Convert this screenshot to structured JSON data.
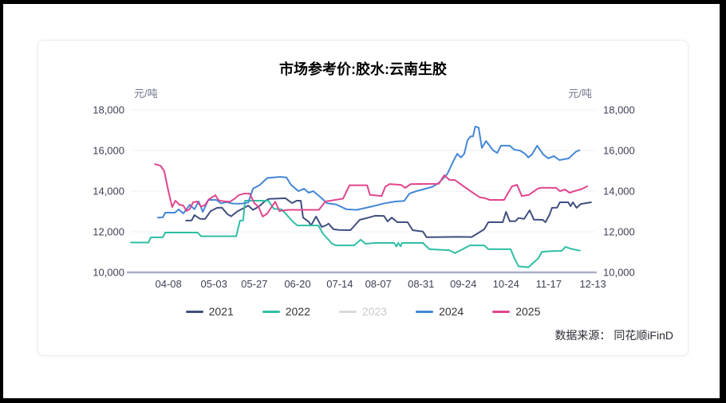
{
  "chart": {
    "title": "市场参考价:胶水:云南生胶",
    "unit_left": "元/吨",
    "unit_right": "元/吨",
    "source": "数据来源：  同花顺iFinD"
  },
  "chart_data": {
    "type": "line",
    "title": "市场参考价:胶水:云南生胶",
    "xlabel": "",
    "ylabel": "元/吨",
    "ylim": [
      10000,
      18000
    ],
    "grid": "horizontal",
    "legend_position": "bottom",
    "axis_text_color": "#3e4156",
    "grid_color": "#edeff6",
    "axis_line_color": "#a9aec8",
    "disabled_color": "#d9d9d9",
    "y_ticks": [
      {
        "value": 10000,
        "label": "10,000"
      },
      {
        "value": 12000,
        "label": "12,000"
      },
      {
        "value": 14000,
        "label": "14,000"
      },
      {
        "value": 16000,
        "label": "16,000"
      },
      {
        "value": 18000,
        "label": "18,000"
      }
    ],
    "x_ticks": [
      {
        "label": "04-08",
        "pos": 8.1
      },
      {
        "label": "05-03",
        "pos": 17.9
      },
      {
        "label": "05-27",
        "pos": 26.6
      },
      {
        "label": "06-20",
        "pos": 35.9
      },
      {
        "label": "07-14",
        "pos": 45.0
      },
      {
        "label": "08-07",
        "pos": 53.3
      },
      {
        "label": "08-31",
        "pos": 62.5
      },
      {
        "label": "09-24",
        "pos": 71.6
      },
      {
        "label": "10-24",
        "pos": 80.8
      },
      {
        "label": "11-17",
        "pos": 90.0
      },
      {
        "label": "12-13",
        "pos": 99.5
      }
    ],
    "series": [
      {
        "name": "2021",
        "color": "#3f4f7f",
        "visible": true,
        "points": [
          [
            11.9,
            12550
          ],
          [
            13.1,
            12560
          ],
          [
            13.7,
            12820
          ],
          [
            14.9,
            12640
          ],
          [
            16,
            12630
          ],
          [
            17.2,
            13020
          ],
          [
            18.6,
            13180
          ],
          [
            19.6,
            13190
          ],
          [
            20.8,
            12870
          ],
          [
            21.6,
            12760
          ],
          [
            22.9,
            13000
          ],
          [
            24.1,
            13140
          ],
          [
            25.3,
            13290
          ],
          [
            26.3,
            13080
          ],
          [
            27.5,
            13230
          ],
          [
            28.9,
            13510
          ],
          [
            29.7,
            13620
          ],
          [
            33.3,
            13650
          ],
          [
            34.7,
            13410
          ],
          [
            35.7,
            13530
          ],
          [
            36.6,
            13530
          ],
          [
            37.1,
            12700
          ],
          [
            38.3,
            12500
          ],
          [
            38.8,
            12310
          ],
          [
            39.9,
            12750
          ],
          [
            41.1,
            12240
          ],
          [
            41.9,
            12300
          ],
          [
            42.6,
            12400
          ],
          [
            43.6,
            12130
          ],
          [
            44.8,
            12090
          ],
          [
            47.3,
            12080
          ],
          [
            49.3,
            12590
          ],
          [
            51.2,
            12700
          ],
          [
            52.6,
            12790
          ],
          [
            54.5,
            12780
          ],
          [
            55.3,
            12510
          ],
          [
            56.2,
            12700
          ],
          [
            57.4,
            12470
          ],
          [
            59.6,
            12470
          ],
          [
            60.7,
            12080
          ],
          [
            62.9,
            12010
          ],
          [
            63.7,
            11730
          ],
          [
            70.6,
            11750
          ],
          [
            73.4,
            11740
          ],
          [
            74.7,
            11920
          ],
          [
            76.1,
            12120
          ],
          [
            77,
            12470
          ],
          [
            80.1,
            12470
          ],
          [
            80.8,
            12980
          ],
          [
            81.6,
            12520
          ],
          [
            82.8,
            12520
          ],
          [
            83.5,
            12680
          ],
          [
            84.7,
            12630
          ],
          [
            85.9,
            13060
          ],
          [
            86.8,
            12600
          ],
          [
            88.7,
            12590
          ],
          [
            89.3,
            12470
          ],
          [
            90.2,
            12860
          ],
          [
            90.7,
            13180
          ],
          [
            91.8,
            13190
          ],
          [
            92.4,
            13450
          ],
          [
            94.2,
            13450
          ],
          [
            94.7,
            13260
          ],
          [
            95.2,
            13450
          ],
          [
            96,
            13180
          ],
          [
            96.9,
            13370
          ],
          [
            99.1,
            13450
          ]
        ]
      },
      {
        "name": "2022",
        "color": "#2fbfa4",
        "visible": true,
        "points": [
          [
            0,
            11470
          ],
          [
            3.8,
            11470
          ],
          [
            4.3,
            11720
          ],
          [
            6.9,
            11730
          ],
          [
            7.4,
            11960
          ],
          [
            14.4,
            11960
          ],
          [
            15.1,
            11780
          ],
          [
            22.7,
            11780
          ],
          [
            23.5,
            12550
          ],
          [
            24.2,
            12560
          ],
          [
            24.6,
            13530
          ],
          [
            29.6,
            13530
          ],
          [
            30.8,
            13130
          ],
          [
            32.5,
            13100
          ],
          [
            35.1,
            12450
          ],
          [
            35.9,
            12310
          ],
          [
            40.4,
            12310
          ],
          [
            41.4,
            11900
          ],
          [
            43.3,
            11420
          ],
          [
            44.2,
            11330
          ],
          [
            48.1,
            11330
          ],
          [
            49.5,
            11610
          ],
          [
            50.5,
            11410
          ],
          [
            52.7,
            11450
          ],
          [
            56.7,
            11450
          ],
          [
            57.2,
            11280
          ],
          [
            57.6,
            11450
          ],
          [
            58.1,
            11280
          ],
          [
            58.4,
            11450
          ],
          [
            62.9,
            11450
          ],
          [
            64.3,
            11140
          ],
          [
            68.6,
            11090
          ],
          [
            69.8,
            10950
          ],
          [
            71.3,
            11120
          ],
          [
            73,
            11330
          ],
          [
            76.1,
            11330
          ],
          [
            77,
            11140
          ],
          [
            81.8,
            11140
          ],
          [
            82.6,
            10700
          ],
          [
            83.5,
            10300
          ],
          [
            85.6,
            10250
          ],
          [
            86.8,
            10500
          ],
          [
            87.8,
            10700
          ],
          [
            88.5,
            11010
          ],
          [
            90.7,
            11050
          ],
          [
            92.8,
            11060
          ],
          [
            93.6,
            11260
          ],
          [
            94.8,
            11160
          ],
          [
            96.7,
            11070
          ]
        ]
      },
      {
        "name": "2023",
        "color": "#d9d9d9",
        "visible": false,
        "points": []
      },
      {
        "name": "2024",
        "color": "#4487d6",
        "visible": true,
        "points": [
          [
            5.8,
            12700
          ],
          [
            6.9,
            12710
          ],
          [
            7.4,
            12940
          ],
          [
            9.5,
            12940
          ],
          [
            10.3,
            13100
          ],
          [
            11.3,
            12900
          ],
          [
            12.7,
            13330
          ],
          [
            13.7,
            13110
          ],
          [
            14.6,
            13490
          ],
          [
            15.5,
            12980
          ],
          [
            16.7,
            13570
          ],
          [
            18.4,
            13570
          ],
          [
            19.4,
            13400
          ],
          [
            20.6,
            13460
          ],
          [
            22,
            13390
          ],
          [
            23.7,
            13380
          ],
          [
            25.3,
            13440
          ],
          [
            26.3,
            14120
          ],
          [
            27.8,
            14310
          ],
          [
            29.4,
            14650
          ],
          [
            32.1,
            14700
          ],
          [
            33.5,
            14680
          ],
          [
            34.5,
            14310
          ],
          [
            36.1,
            14000
          ],
          [
            37.3,
            14120
          ],
          [
            38.3,
            13920
          ],
          [
            39.3,
            14000
          ],
          [
            40.7,
            13730
          ],
          [
            42.3,
            13400
          ],
          [
            44.2,
            13350
          ],
          [
            46.4,
            13110
          ],
          [
            48.6,
            13080
          ],
          [
            50.3,
            13160
          ],
          [
            52.2,
            13260
          ],
          [
            54.6,
            13400
          ],
          [
            57,
            13490
          ],
          [
            58.9,
            13520
          ],
          [
            60,
            13880
          ],
          [
            61.5,
            14000
          ],
          [
            63.2,
            14100
          ],
          [
            64.9,
            14210
          ],
          [
            66.3,
            14400
          ],
          [
            67.2,
            14610
          ],
          [
            68.2,
            14860
          ],
          [
            69.4,
            15450
          ],
          [
            70.3,
            15840
          ],
          [
            71.1,
            15660
          ],
          [
            71.8,
            15840
          ],
          [
            72.5,
            16510
          ],
          [
            73.2,
            16700
          ],
          [
            73.7,
            16700
          ],
          [
            74.2,
            17180
          ],
          [
            74.9,
            17130
          ],
          [
            75.6,
            16130
          ],
          [
            76.5,
            16470
          ],
          [
            78,
            16010
          ],
          [
            78.9,
            15880
          ],
          [
            79.7,
            16240
          ],
          [
            81.6,
            16240
          ],
          [
            82.6,
            16040
          ],
          [
            83.8,
            16000
          ],
          [
            84.9,
            15840
          ],
          [
            85.6,
            15660
          ],
          [
            86.4,
            15810
          ],
          [
            87.5,
            16240
          ],
          [
            88.8,
            15810
          ],
          [
            89.9,
            15610
          ],
          [
            91.1,
            15730
          ],
          [
            92.3,
            15530
          ],
          [
            94.3,
            15610
          ],
          [
            95.9,
            15950
          ],
          [
            96.6,
            16010
          ]
        ]
      },
      {
        "name": "2025",
        "color": "#e0458d",
        "visible": true,
        "points": [
          [
            5.2,
            15330
          ],
          [
            6.4,
            15250
          ],
          [
            7.2,
            14980
          ],
          [
            8.1,
            14000
          ],
          [
            8.9,
            13220
          ],
          [
            9.6,
            13530
          ],
          [
            10.5,
            13330
          ],
          [
            11.3,
            13290
          ],
          [
            12,
            13020
          ],
          [
            12.7,
            13120
          ],
          [
            13.4,
            13450
          ],
          [
            14.3,
            13490
          ],
          [
            15.1,
            13240
          ],
          [
            16,
            13320
          ],
          [
            16.8,
            13600
          ],
          [
            17.7,
            13720
          ],
          [
            18.2,
            13800
          ],
          [
            18.9,
            13550
          ],
          [
            20.1,
            13500
          ],
          [
            21.3,
            13480
          ],
          [
            22.3,
            13620
          ],
          [
            23.2,
            13800
          ],
          [
            24.4,
            13880
          ],
          [
            25.6,
            13880
          ],
          [
            26.6,
            13410
          ],
          [
            27.5,
            13220
          ],
          [
            28.4,
            12750
          ],
          [
            29.4,
            12900
          ],
          [
            30.4,
            13250
          ],
          [
            31.1,
            13480
          ],
          [
            32,
            13020
          ],
          [
            33,
            13060
          ],
          [
            34,
            13080
          ],
          [
            40.5,
            13080
          ],
          [
            41.9,
            13490
          ],
          [
            43.5,
            13550
          ],
          [
            45.7,
            13630
          ],
          [
            47.1,
            14290
          ],
          [
            50.9,
            14290
          ],
          [
            51.5,
            13820
          ],
          [
            54,
            13760
          ],
          [
            54.8,
            14210
          ],
          [
            55.7,
            14350
          ],
          [
            58.2,
            14310
          ],
          [
            59.1,
            14160
          ],
          [
            60.3,
            14350
          ],
          [
            66.3,
            14360
          ],
          [
            67.5,
            14780
          ],
          [
            68.6,
            14560
          ],
          [
            69.8,
            14550
          ],
          [
            71.3,
            14300
          ],
          [
            73.4,
            13960
          ],
          [
            75.1,
            13700
          ],
          [
            76.3,
            13650
          ],
          [
            77.3,
            13570
          ],
          [
            80.4,
            13570
          ],
          [
            82.1,
            14240
          ],
          [
            83.2,
            14310
          ],
          [
            84.2,
            13760
          ],
          [
            85.7,
            13810
          ],
          [
            87.6,
            14120
          ],
          [
            88.5,
            14170
          ],
          [
            91.6,
            14160
          ],
          [
            92.4,
            14000
          ],
          [
            93.5,
            14080
          ],
          [
            94.5,
            13920
          ],
          [
            95.5,
            14000
          ],
          [
            97.1,
            14100
          ],
          [
            98.3,
            14240
          ]
        ]
      }
    ]
  }
}
